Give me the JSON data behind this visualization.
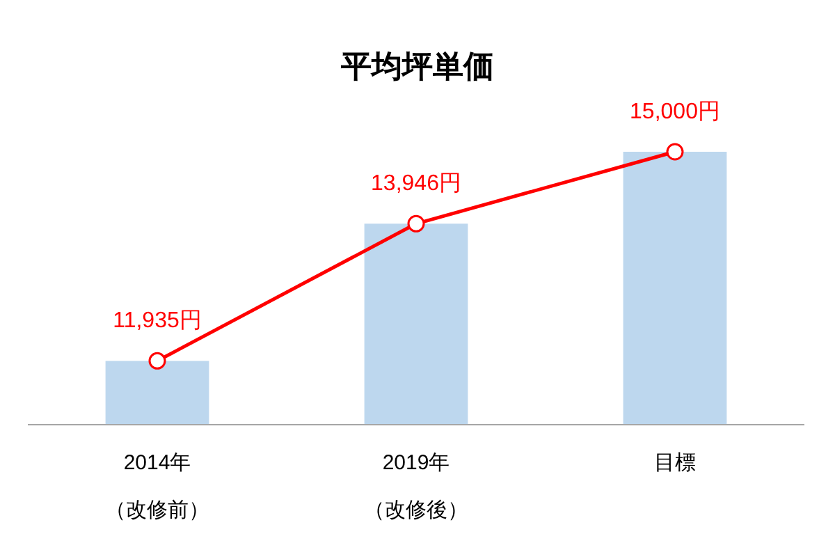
{
  "chart_data": {
    "type": "bar",
    "title": "平均坪単価",
    "categories": [
      "2014年",
      "2019年",
      "目標"
    ],
    "annotations": [
      "（改修前）",
      "（改修後）"
    ],
    "ylim": [
      11000,
      15000
    ],
    "series": [
      {
        "color": "#bdd7ee",
        "values": [
          11935,
          13946,
          15000
        ]
      },
      {
        "type": "line",
        "color": "#ff0000",
        "marker": "circle",
        "line_style": "solid",
        "values": [
          11935,
          13946,
          15000
        ],
        "value_labels": [
          "11,935円",
          "13,946円",
          "15,000円"
        ]
      }
    ]
  }
}
